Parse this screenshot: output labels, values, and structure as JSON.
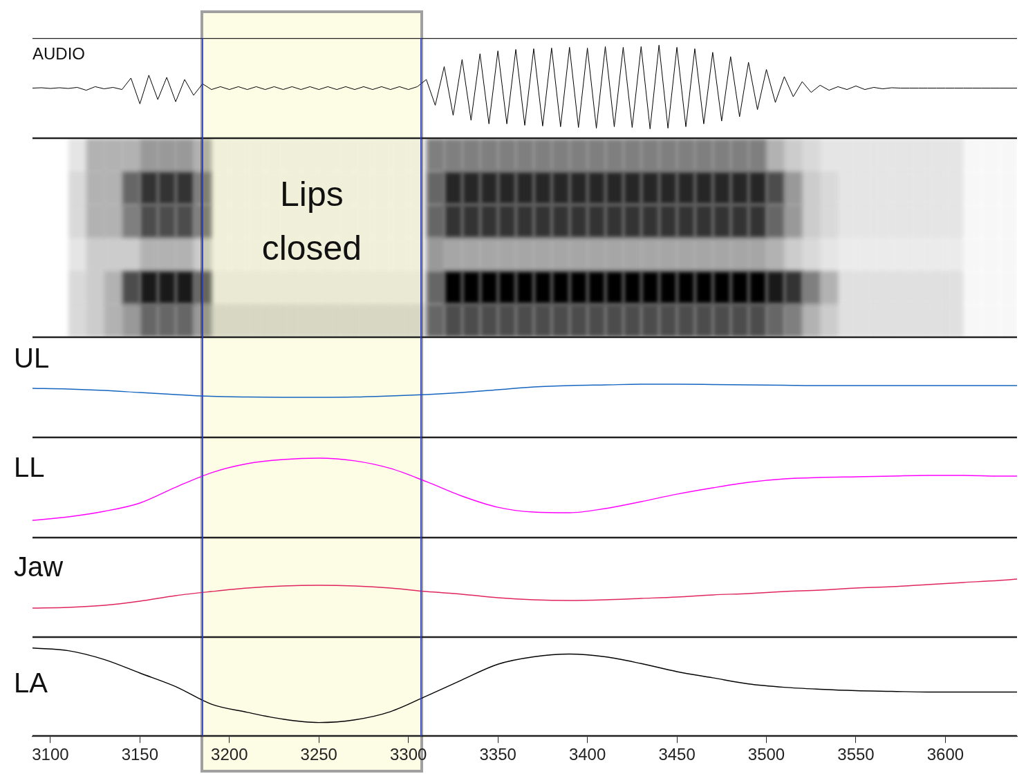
{
  "annotation": {
    "text": "Lips closed",
    "x": [
      3185,
      3307
    ]
  },
  "chart_data": [
    {
      "type": "line",
      "title": "AUDIO",
      "color": "#000000",
      "xlim": [
        3090,
        3640
      ],
      "ylim": [
        -70,
        70
      ],
      "tick_labels": false,
      "grid": false,
      "x": [
        3090,
        3095,
        3100,
        3105,
        3110,
        3115,
        3120,
        3125,
        3130,
        3135,
        3140,
        3145,
        3150,
        3155,
        3160,
        3165,
        3170,
        3175,
        3180,
        3185,
        3190,
        3195,
        3200,
        3205,
        3210,
        3215,
        3220,
        3225,
        3230,
        3235,
        3240,
        3245,
        3250,
        3255,
        3260,
        3265,
        3270,
        3275,
        3280,
        3285,
        3290,
        3295,
        3300,
        3305,
        3310,
        3315,
        3320,
        3325,
        3330,
        3335,
        3340,
        3345,
        3350,
        3355,
        3360,
        3365,
        3370,
        3375,
        3380,
        3385,
        3390,
        3395,
        3400,
        3405,
        3410,
        3415,
        3420,
        3425,
        3430,
        3435,
        3440,
        3445,
        3450,
        3455,
        3460,
        3465,
        3470,
        3475,
        3480,
        3485,
        3490,
        3495,
        3500,
        3505,
        3510,
        3515,
        3520,
        3525,
        3530,
        3535,
        3540,
        3545,
        3550,
        3555,
        3560,
        3565,
        3570,
        3575,
        3580,
        3585,
        3590,
        3595,
        3600,
        3605,
        3610,
        3615,
        3620,
        3625,
        3630,
        3635,
        3640
      ],
      "values": [
        0,
        0.5,
        -0.5,
        0.5,
        -0.5,
        1,
        -3,
        2,
        -1,
        1,
        -2,
        14,
        -22,
        18,
        -16,
        15,
        -19,
        12,
        -10,
        6,
        -2,
        2,
        -2,
        2,
        -2,
        2,
        -2,
        2,
        -2,
        2,
        -2,
        2,
        -2,
        2,
        -2,
        2,
        -2,
        2,
        -2,
        2,
        -2,
        2,
        -2,
        2,
        12,
        -24,
        30,
        -38,
        40,
        -45,
        48,
        -50,
        52,
        -50,
        54,
        -52,
        55,
        -53,
        56,
        -54,
        57,
        -55,
        56,
        -56,
        58,
        -54,
        57,
        -55,
        58,
        -57,
        60,
        -56,
        57,
        -54,
        55,
        -50,
        50,
        -46,
        44,
        -40,
        36,
        -30,
        26,
        -20,
        16,
        -12,
        9,
        -6,
        4,
        -3,
        2,
        -2,
        3,
        -2,
        1,
        -1,
        0.5,
        0,
        0,
        0,
        0,
        0,
        0,
        0,
        0,
        0,
        0,
        0,
        0,
        0,
        0
      ]
    },
    {
      "type": "heatmap",
      "color": "#000000",
      "xlim": [
        3090,
        3640
      ],
      "tick_labels": false,
      "grid": false,
      "x": [
        3090,
        3100,
        3110,
        3120,
        3130,
        3140,
        3150,
        3160,
        3170,
        3180,
        3190,
        3200,
        3210,
        3220,
        3230,
        3240,
        3250,
        3260,
        3270,
        3280,
        3290,
        3300,
        3310,
        3320,
        3330,
        3340,
        3350,
        3360,
        3370,
        3380,
        3390,
        3400,
        3410,
        3420,
        3430,
        3440,
        3450,
        3460,
        3470,
        3480,
        3490,
        3500,
        3510,
        3520,
        3530,
        3540,
        3550,
        3560,
        3570,
        3580,
        3590,
        3600,
        3610,
        3620,
        3630
      ],
      "cells": [
        [
          0,
          0,
          0.1,
          0.3,
          0.3,
          0.3,
          0.4,
          0.4,
          0.4,
          0.3,
          0.05,
          0.05,
          0.05,
          0.05,
          0.05,
          0.05,
          0.05,
          0.05,
          0.05,
          0.05,
          0.05,
          0.05,
          0.5,
          0.5,
          0.5,
          0.5,
          0.5,
          0.5,
          0.5,
          0.5,
          0.5,
          0.5,
          0.5,
          0.5,
          0.5,
          0.5,
          0.5,
          0.5,
          0.5,
          0.5,
          0.5,
          0.3,
          0.2,
          0.15,
          0.1,
          0.1,
          0.1,
          0.1,
          0.1,
          0.1,
          0.1,
          0.1,
          0.03,
          0.03,
          0.03
        ],
        [
          0,
          0,
          0.15,
          0.3,
          0.3,
          0.6,
          0.8,
          0.8,
          0.8,
          0.5,
          0.05,
          0.05,
          0.05,
          0.05,
          0.05,
          0.05,
          0.05,
          0.05,
          0.05,
          0.05,
          0.05,
          0.05,
          0.6,
          0.85,
          0.85,
          0.85,
          0.85,
          0.85,
          0.85,
          0.85,
          0.85,
          0.85,
          0.85,
          0.85,
          0.85,
          0.85,
          0.85,
          0.85,
          0.85,
          0.85,
          0.85,
          0.7,
          0.4,
          0.2,
          0.15,
          0.1,
          0.1,
          0.1,
          0.1,
          0.1,
          0.1,
          0.1,
          0.03,
          0.03,
          0.03
        ],
        [
          0,
          0,
          0.15,
          0.3,
          0.3,
          0.5,
          0.7,
          0.7,
          0.7,
          0.5,
          0.05,
          0.05,
          0.05,
          0.05,
          0.05,
          0.05,
          0.05,
          0.05,
          0.05,
          0.05,
          0.05,
          0.05,
          0.6,
          0.8,
          0.8,
          0.8,
          0.8,
          0.8,
          0.8,
          0.8,
          0.8,
          0.8,
          0.8,
          0.8,
          0.8,
          0.8,
          0.8,
          0.8,
          0.8,
          0.8,
          0.8,
          0.6,
          0.4,
          0.2,
          0.15,
          0.1,
          0.1,
          0.1,
          0.1,
          0.1,
          0.1,
          0.1,
          0.03,
          0.03,
          0.03
        ],
        [
          0,
          0,
          0.1,
          0.2,
          0.2,
          0.2,
          0.3,
          0.3,
          0.3,
          0.2,
          0.05,
          0.05,
          0.05,
          0.05,
          0.05,
          0.05,
          0.05,
          0.05,
          0.05,
          0.05,
          0.05,
          0.05,
          0.4,
          0.35,
          0.35,
          0.35,
          0.35,
          0.35,
          0.35,
          0.35,
          0.35,
          0.35,
          0.35,
          0.35,
          0.35,
          0.35,
          0.35,
          0.35,
          0.35,
          0.35,
          0.35,
          0.3,
          0.2,
          0.15,
          0.1,
          0.08,
          0.08,
          0.08,
          0.08,
          0.08,
          0.08,
          0.08,
          0.03,
          0.03,
          0.03
        ],
        [
          0,
          0,
          0.15,
          0.2,
          0.3,
          0.7,
          0.9,
          0.9,
          0.9,
          0.6,
          0.08,
          0.08,
          0.08,
          0.08,
          0.08,
          0.08,
          0.08,
          0.08,
          0.08,
          0.08,
          0.08,
          0.08,
          0.6,
          1,
          1,
          1,
          1,
          1,
          1,
          1,
          1,
          1,
          1,
          1,
          1,
          1,
          1,
          1,
          1,
          1,
          1,
          0.9,
          0.8,
          0.5,
          0.3,
          0.12,
          0.12,
          0.12,
          0.12,
          0.12,
          0.12,
          0.12,
          0.03,
          0.03,
          0.03
        ],
        [
          0,
          0,
          0.15,
          0.2,
          0.3,
          0.4,
          0.6,
          0.6,
          0.6,
          0.4,
          0.15,
          0.15,
          0.15,
          0.15,
          0.15,
          0.15,
          0.15,
          0.15,
          0.15,
          0.15,
          0.15,
          0.15,
          0.6,
          0.7,
          0.7,
          0.7,
          0.7,
          0.7,
          0.7,
          0.7,
          0.7,
          0.7,
          0.7,
          0.7,
          0.7,
          0.7,
          0.7,
          0.7,
          0.7,
          0.7,
          0.7,
          0.6,
          0.5,
          0.3,
          0.2,
          0.12,
          0.12,
          0.12,
          0.12,
          0.12,
          0.12,
          0.12,
          0.03,
          0.03,
          0.03
        ]
      ]
    },
    {
      "type": "line",
      "title": "UL",
      "color": "#1565c0",
      "xlim": [
        3090,
        3640
      ],
      "ylim": [
        0,
        100
      ],
      "tick_labels": false,
      "grid": false,
      "x": [
        3090,
        3110,
        3130,
        3150,
        3170,
        3190,
        3210,
        3230,
        3250,
        3270,
        3290,
        3310,
        3330,
        3350,
        3370,
        3390,
        3410,
        3430,
        3450,
        3470,
        3490,
        3510,
        3530,
        3550,
        3570,
        3590,
        3610,
        3630,
        3640
      ],
      "values": [
        49.0,
        48.3,
        46.9,
        44.8,
        42.8,
        41.0,
        40.3,
        40.0,
        40.0,
        40.3,
        41.4,
        42.8,
        44.8,
        47.6,
        50.3,
        51.7,
        52.4,
        53.1,
        53.1,
        52.8,
        52.4,
        52.1,
        51.7,
        51.7,
        51.7,
        51.7,
        51.7,
        51.7,
        51.7
      ]
    },
    {
      "type": "line",
      "title": "LL",
      "color": "#ff00ff",
      "xlim": [
        3090,
        3640
      ],
      "ylim": [
        0,
        100
      ],
      "tick_labels": false,
      "grid": false,
      "x": [
        3090,
        3110,
        3130,
        3150,
        3170,
        3190,
        3210,
        3230,
        3250,
        3270,
        3290,
        3310,
        3330,
        3350,
        3370,
        3390,
        3410,
        3430,
        3450,
        3470,
        3490,
        3510,
        3530,
        3550,
        3570,
        3590,
        3610,
        3630,
        3640
      ],
      "values": [
        17.2,
        20.7,
        26.2,
        34.5,
        50.3,
        64.8,
        73.8,
        77.9,
        79.3,
        76.6,
        69.0,
        55.9,
        41.4,
        30.3,
        25.5,
        24.8,
        29.0,
        35.9,
        43.4,
        49.7,
        55.2,
        58.6,
        60.0,
        60.7,
        61.4,
        62.1,
        62.1,
        61.4,
        61.4
      ]
    },
    {
      "type": "line",
      "title": "Jaw",
      "color": "#e0245e",
      "xlim": [
        3090,
        3640
      ],
      "ylim": [
        0,
        100
      ],
      "tick_labels": false,
      "grid": false,
      "x": [
        3090,
        3110,
        3130,
        3150,
        3170,
        3190,
        3210,
        3230,
        3250,
        3270,
        3290,
        3310,
        3330,
        3350,
        3370,
        3390,
        3410,
        3430,
        3450,
        3470,
        3490,
        3510,
        3530,
        3550,
        3570,
        3590,
        3610,
        3630,
        3640
      ],
      "values": [
        29.2,
        29.9,
        31.9,
        36.1,
        41.7,
        45.8,
        49.3,
        51.4,
        52.1,
        51.4,
        49.3,
        45.8,
        43.1,
        39.6,
        37.5,
        36.8,
        37.5,
        38.9,
        40.3,
        42.4,
        43.8,
        45.8,
        47.2,
        49.3,
        50.7,
        52.8,
        54.9,
        56.9,
        58.3
      ]
    },
    {
      "type": "line",
      "title": "LA",
      "color": "#000000",
      "xlim": [
        3090,
        3640
      ],
      "ylim": [
        0,
        100
      ],
      "tick_labels": "x",
      "grid": false,
      "xticks": [
        3100,
        3150,
        3200,
        3250,
        3300,
        3350,
        3400,
        3450,
        3500,
        3550,
        3600
      ],
      "x": [
        3090,
        3110,
        3130,
        3150,
        3170,
        3190,
        3210,
        3230,
        3250,
        3270,
        3290,
        3310,
        3330,
        3350,
        3370,
        3390,
        3410,
        3430,
        3450,
        3470,
        3490,
        3510,
        3530,
        3550,
        3570,
        3590,
        3610,
        3630,
        3640
      ],
      "values": [
        89.0,
        86.3,
        77.4,
        63.7,
        50.0,
        32.2,
        24.0,
        17.1,
        13.7,
        16.4,
        24.7,
        40.4,
        56.8,
        72.6,
        80.1,
        82.9,
        80.1,
        73.3,
        65.1,
        58.9,
        52.7,
        49.3,
        47.3,
        45.9,
        45.2,
        44.5,
        44.5,
        44.5,
        44.5
      ]
    }
  ]
}
